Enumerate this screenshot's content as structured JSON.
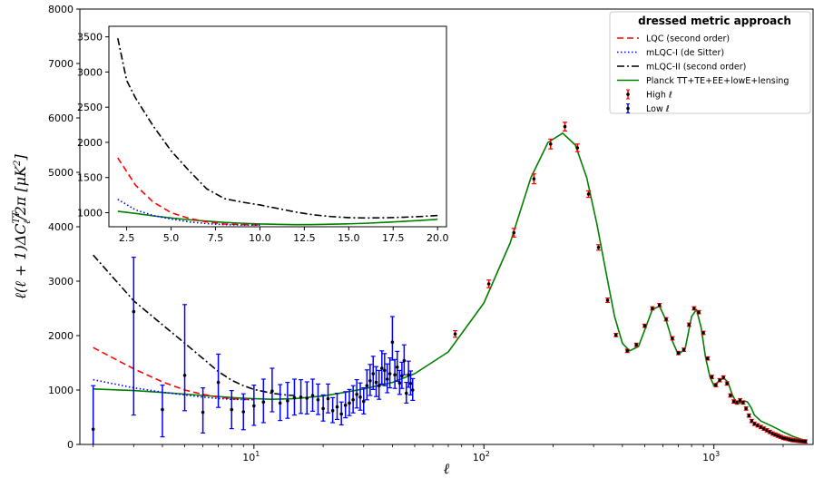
{
  "chart_data": [
    {
      "type": "line",
      "xlabel": "ℓ",
      "ylabel": "ℓ(ℓ + 1)ΔC",
      "ylabel_sup": "TT",
      "ylabel_sub": "ℓ",
      "ylabel_tail": "/2π [μK",
      "ylabel_pow": "2",
      "ylabel_end": "]",
      "xscale": "log",
      "xlim": [
        1.75,
        2700
      ],
      "ylim": [
        0,
        8000
      ],
      "x_ticks": [
        {
          "v": 10,
          "label": "10",
          "exp": "1"
        },
        {
          "v": 100,
          "label": "10",
          "exp": "2"
        },
        {
          "v": 1000,
          "label": "10",
          "exp": "3"
        }
      ],
      "y_ticks": [
        0,
        1000,
        2000,
        3000,
        4000,
        5000,
        6000,
        7000,
        8000
      ],
      "legend": {
        "title": "dressed metric approach",
        "placement": "top-right",
        "entries": [
          {
            "label": "LQC (second order)",
            "color": "#ff0000",
            "style": "dashed"
          },
          {
            "label": "mLQC-I (de Sitter)",
            "color": "#0000ff",
            "style": "dotted"
          },
          {
            "label": "mLQC-II (second order)",
            "color": "#000000",
            "style": "dashdot"
          },
          {
            "label": "Planck TT+TE+EE+lowE+lensing",
            "color": "#008000",
            "style": "solid"
          },
          {
            "label": "High ℓ",
            "color": "#ff0000",
            "style": "errorbar"
          },
          {
            "label": "Low ℓ",
            "color": "#0000ff",
            "style": "errorbar"
          }
        ]
      },
      "series": [
        {
          "name": "LQC (second order)",
          "color": "#ff0000",
          "style": "dashed",
          "x": [
            2,
            3,
            4,
            5,
            6,
            7,
            8,
            9,
            10
          ],
          "y": [
            1780,
            1390,
            1150,
            1000,
            920,
            870,
            840,
            830,
            825
          ]
        },
        {
          "name": "mLQC-I (de Sitter)",
          "color": "#0000ff",
          "style": "dotted",
          "x": [
            2,
            3,
            4,
            5,
            6,
            7,
            8,
            9,
            10
          ],
          "y": [
            1190,
            1040,
            960,
            910,
            870,
            845,
            830,
            825,
            823
          ]
        },
        {
          "name": "mLQC-II (second order)",
          "color": "#000000",
          "style": "dashdot",
          "x": [
            2,
            3,
            4,
            5,
            6,
            7,
            8,
            9,
            10,
            12,
            14,
            15
          ],
          "y": [
            3480,
            2640,
            2200,
            1860,
            1580,
            1340,
            1180,
            1080,
            1010,
            940,
            905,
            900
          ]
        },
        {
          "name": "Planck TT+TE+EE+lowE+lensing",
          "color": "#008000",
          "style": "solid",
          "x": [
            2,
            3,
            4,
            5,
            6,
            7,
            8,
            9,
            10,
            12,
            15,
            20,
            25,
            30,
            40,
            50,
            70,
            100,
            130,
            160,
            190,
            220,
            250,
            280,
            310,
            340,
            370,
            400,
            430,
            470,
            500,
            540,
            580,
            620,
            660,
            700,
            750,
            800,
            840,
            880,
            920,
            960,
            1000,
            1050,
            1100,
            1150,
            1200,
            1250,
            1300,
            1350,
            1400,
            1450,
            1500,
            1600,
            1700,
            1800,
            1900,
            2000,
            2100,
            2200,
            2300,
            2400,
            2500
          ],
          "y": [
            1020,
            990,
            955,
            925,
            900,
            880,
            862,
            850,
            840,
            830,
            840,
            890,
            960,
            1020,
            1140,
            1300,
            1700,
            2600,
            3700,
            4900,
            5550,
            5720,
            5500,
            4900,
            4050,
            3150,
            2350,
            1860,
            1720,
            1800,
            2100,
            2480,
            2540,
            2280,
            1900,
            1650,
            1760,
            2350,
            2480,
            2150,
            1600,
            1250,
            1080,
            1160,
            1220,
            1150,
            920,
            780,
            760,
            800,
            780,
            680,
            540,
            430,
            380,
            330,
            280,
            230,
            190,
            150,
            120,
            95,
            75
          ]
        },
        {
          "name": "High ℓ",
          "color": "#ff0000",
          "style": "errorbar",
          "x": [
            75,
            105,
            135,
            165,
            195,
            225,
            255,
            285,
            315,
            345,
            375,
            420,
            460,
            500,
            540,
            580,
            620,
            660,
            700,
            740,
            780,
            820,
            860,
            900,
            940,
            980,
            1020,
            1060,
            1100,
            1140,
            1180,
            1220,
            1260,
            1300,
            1340,
            1380,
            1420,
            1460,
            1500,
            1550,
            1600,
            1650,
            1700,
            1750,
            1800,
            1850,
            1900,
            1950,
            2000,
            2050,
            2100,
            2150,
            2200,
            2250,
            2300,
            2350,
            2400,
            2450,
            2500
          ],
          "y": [
            2030,
            2950,
            3890,
            4880,
            5520,
            5840,
            5450,
            4600,
            3620,
            2650,
            2010,
            1720,
            1830,
            2180,
            2500,
            2560,
            2300,
            1950,
            1680,
            1740,
            2200,
            2500,
            2430,
            2050,
            1580,
            1240,
            1090,
            1180,
            1230,
            1120,
            900,
            790,
            770,
            810,
            770,
            660,
            530,
            430,
            380,
            350,
            320,
            290,
            260,
            230,
            200,
            180,
            160,
            140,
            120,
            110,
            100,
            90,
            80,
            75,
            70,
            65,
            62,
            58,
            55
          ],
          "err": [
            60,
            70,
            80,
            90,
            90,
            80,
            70,
            60,
            50,
            40,
            30,
            30,
            30,
            30,
            30,
            30,
            30,
            30,
            30,
            30,
            30,
            30,
            30,
            30,
            30,
            30,
            30,
            30,
            30,
            30,
            30,
            30,
            30,
            30,
            30,
            30,
            30,
            30,
            30,
            30,
            30,
            30,
            30,
            30,
            30,
            30,
            30,
            30,
            30,
            30,
            30,
            30,
            30,
            30,
            30,
            30,
            30,
            30,
            30
          ]
        },
        {
          "name": "Low ℓ",
          "color": "#0000ff",
          "style": "errorbar",
          "x": [
            2,
            3,
            4,
            5,
            6,
            7,
            8,
            9,
            10,
            11,
            12,
            13,
            14,
            15,
            16,
            17,
            18,
            19,
            20,
            21,
            22,
            23,
            24,
            25,
            26,
            27,
            28,
            29,
            30,
            31,
            32,
            33,
            34,
            35,
            36,
            37,
            38,
            39,
            40,
            41,
            42,
            43,
            44,
            45,
            46,
            47,
            48,
            49
          ],
          "y": [
            280,
            2440,
            640,
            1270,
            590,
            1140,
            640,
            600,
            710,
            780,
            980,
            760,
            800,
            860,
            870,
            850,
            900,
            820,
            660,
            840,
            620,
            690,
            560,
            720,
            760,
            820,
            920,
            870,
            790,
            1080,
            1170,
            1300,
            1140,
            1080,
            1400,
            1360,
            1200,
            1300,
            1880,
            1280,
            1420,
            1130,
            1260,
            1540,
            940,
            1280,
            1120,
            1000
          ],
          "err_lo": [
            1100,
            1900,
            500,
            650,
            380,
            460,
            350,
            330,
            360,
            380,
            380,
            320,
            320,
            320,
            300,
            290,
            290,
            270,
            230,
            260,
            220,
            230,
            200,
            230,
            230,
            240,
            250,
            240,
            230,
            260,
            270,
            290,
            260,
            250,
            290,
            280,
            250,
            260,
            330,
            250,
            260,
            210,
            230,
            260,
            180,
            230,
            210,
            190
          ],
          "err_hi": [
            800,
            1000,
            450,
            1300,
            450,
            520,
            350,
            330,
            380,
            420,
            420,
            340,
            340,
            340,
            320,
            300,
            300,
            290,
            250,
            270,
            240,
            250,
            220,
            250,
            250,
            260,
            270,
            260,
            250,
            290,
            300,
            320,
            290,
            280,
            320,
            310,
            280,
            290,
            470,
            280,
            290,
            230,
            250,
            290,
            200,
            250,
            230,
            210
          ]
        }
      ]
    },
    {
      "type": "line",
      "role": "inset",
      "xlim": [
        1.5,
        20.5
      ],
      "ylim": [
        800,
        3650
      ],
      "x_ticks": [
        2.5,
        5.0,
        7.5,
        10.0,
        12.5,
        15.0,
        17.5,
        20.0
      ],
      "x_tick_labels": [
        "2.5",
        "5.0",
        "7.5",
        "10.0",
        "12.5",
        "15.0",
        "17.5",
        "20.0"
      ],
      "y_ticks": [
        1000,
        1500,
        2000,
        2500,
        3000,
        3500
      ],
      "series": [
        {
          "name": "LQC (second order)",
          "color": "#ff0000",
          "style": "dashed",
          "x": [
            2,
            3,
            4,
            5,
            6,
            7,
            8,
            9,
            10
          ],
          "y": [
            1780,
            1390,
            1150,
            1000,
            920,
            870,
            840,
            830,
            825
          ]
        },
        {
          "name": "mLQC-I (de Sitter)",
          "color": "#0000ff",
          "style": "dotted",
          "x": [
            2,
            3,
            4,
            5,
            6,
            7,
            8,
            9,
            10
          ],
          "y": [
            1190,
            1040,
            960,
            910,
            870,
            845,
            830,
            825,
            823
          ]
        },
        {
          "name": "mLQC-II (second order)",
          "color": "#000000",
          "style": "dashdot",
          "x": [
            2,
            2.5,
            3,
            4,
            5,
            6,
            7,
            8,
            9,
            10,
            11,
            12,
            13,
            14,
            15,
            16,
            17,
            18,
            19,
            20
          ],
          "y": [
            3480,
            2880,
            2630,
            2230,
            1880,
            1600,
            1340,
            1200,
            1150,
            1110,
            1060,
            1010,
            970,
            945,
            930,
            925,
            928,
            935,
            945,
            960
          ]
        },
        {
          "name": "Planck TT+TE+EE+lowE+lensing",
          "color": "#008000",
          "style": "solid",
          "x": [
            2,
            3,
            4,
            5,
            6,
            7,
            8,
            9,
            10,
            11,
            12,
            13,
            14,
            15,
            16,
            17,
            18,
            19,
            20
          ],
          "y": [
            1020,
            990,
            955,
            925,
            900,
            880,
            862,
            850,
            840,
            835,
            830,
            832,
            836,
            842,
            850,
            862,
            875,
            890,
            905
          ]
        }
      ]
    }
  ]
}
